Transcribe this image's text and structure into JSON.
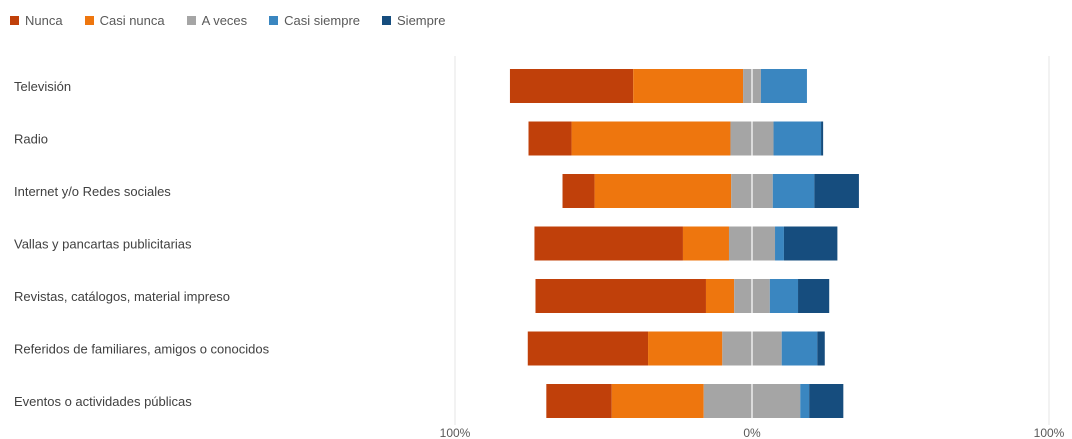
{
  "chart_data": {
    "type": "bar",
    "orientation": "horizontal",
    "stacking": "diverging",
    "legend_position": "top-left",
    "grid": true,
    "categories": [
      "Televisión",
      "Radio",
      "Internet y/o Redes sociales",
      "Vallas y pancartas publicitarias",
      "Revistas, catálogos, material impreso",
      "Referidos de familiares, amigos o conocidos",
      "Eventos o actividades públicas"
    ],
    "series": [
      {
        "name": "Nunca",
        "color": "#C0400A",
        "values": [
          41.5,
          14.5,
          10.8,
          50.0,
          57.4,
          40.5,
          22.0
        ]
      },
      {
        "name": "Casi nunca",
        "color": "#EE760E",
        "values": [
          37.0,
          53.5,
          46.0,
          15.5,
          9.5,
          25.0,
          31.0
        ]
      },
      {
        "name": "A veces",
        "color": "#A5A5A5",
        "values": [
          6.0,
          14.5,
          14.0,
          15.5,
          12.0,
          20.0,
          32.5
        ]
      },
      {
        "name": "Casi siempre",
        "color": "#3A86C0",
        "values": [
          15.5,
          16.0,
          14.0,
          3.0,
          9.5,
          12.0,
          3.0
        ]
      },
      {
        "name": "Siempre",
        "color": "#164D7E",
        "values": [
          0,
          0.7,
          15.0,
          18.0,
          10.5,
          2.5,
          11.5
        ]
      }
    ],
    "xlim": [
      -100,
      100
    ],
    "xticks": [
      {
        "value": -100,
        "label": "100%"
      },
      {
        "value": 0,
        "label": "0%"
      },
      {
        "value": 100,
        "label": "100%"
      }
    ]
  }
}
